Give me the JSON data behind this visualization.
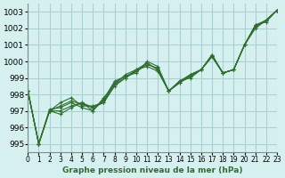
{
  "title": "Graphe pression niveau de la mer (hPa)",
  "bg_color": "#d6f0f0",
  "grid_color": "#aad0d0",
  "line_color": "#2d6e2d",
  "xlim": [
    0,
    23
  ],
  "ylim": [
    994.5,
    1003.5
  ],
  "yticks": [
    995,
    996,
    997,
    998,
    999,
    1000,
    1001,
    1002,
    1003
  ],
  "xtick_labels": [
    "0",
    "1",
    "2",
    "3",
    "4",
    "5",
    "6",
    "7",
    "8",
    "9",
    "10",
    "11",
    "12",
    "13",
    "14",
    "15",
    "16",
    "17",
    "18",
    "19",
    "20",
    "21",
    "22",
    "23"
  ],
  "series": [
    [
      998.2,
      995.0,
      997.0,
      996.8,
      997.2,
      997.5,
      997.0,
      997.7,
      998.8,
      999.1,
      999.3,
      1000.0,
      999.7,
      998.2,
      998.7,
      999.2,
      999.5,
      1000.3,
      999.3,
      999.5,
      1001.0,
      1002.2,
      1002.4,
      1003.1
    ],
    [
      998.2,
      995.0,
      997.0,
      997.5,
      997.8,
      997.3,
      997.3,
      997.5,
      998.5,
      999.0,
      999.5,
      999.7,
      999.4,
      998.2,
      998.8,
      999.0,
      999.5,
      1000.4,
      999.3,
      999.5,
      1001.0,
      1002.1,
      1002.5,
      1003.1
    ],
    [
      998.2,
      995.0,
      997.1,
      997.2,
      997.5,
      997.2,
      997.0,
      997.8,
      998.6,
      999.0,
      999.4,
      999.8,
      999.6,
      998.2,
      998.8,
      999.1,
      999.5,
      1000.3,
      999.3,
      999.5,
      1001.0,
      1002.0,
      1002.5,
      1003.1
    ],
    [
      998.2,
      995.0,
      997.0,
      997.3,
      997.6,
      997.4,
      997.2,
      997.6,
      998.7,
      999.1,
      999.4,
      999.9,
      999.5,
      998.2,
      998.7,
      999.1,
      999.5,
      1000.4,
      999.3,
      999.5,
      1001.0,
      1002.1,
      1002.5,
      1003.1
    ],
    [
      998.2,
      995.0,
      997.0,
      997.0,
      997.3,
      997.5,
      997.2,
      997.5,
      998.6,
      999.2,
      999.5,
      999.9,
      999.5,
      998.2,
      998.8,
      999.2,
      999.5,
      1000.3,
      999.3,
      999.5,
      1001.0,
      1002.2,
      1002.5,
      1003.1
    ]
  ]
}
